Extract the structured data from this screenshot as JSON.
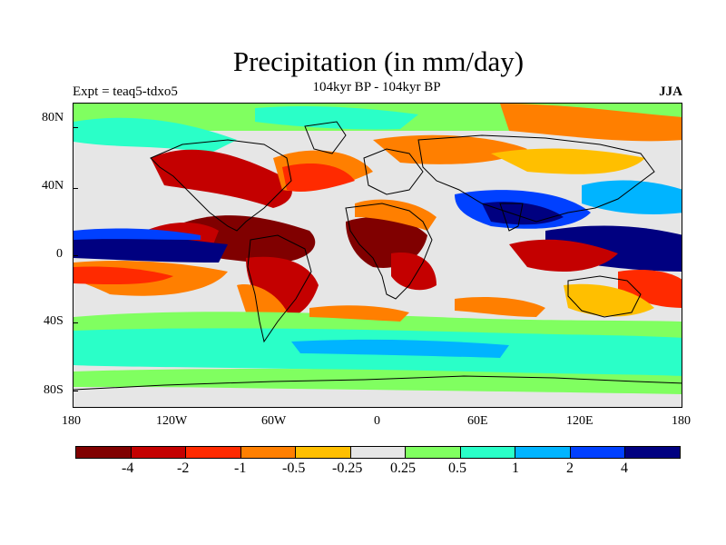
{
  "title": "Precipitation (in mm/day)",
  "subtitle": "104kyr BP - 104kyr BP",
  "experiment": "Expt = teaq5-tdxo5",
  "season": "JJA",
  "map": {
    "lat_labels": [
      "80N",
      "40N",
      "0",
      "40S",
      "80S"
    ],
    "lon_labels": [
      "180",
      "120W",
      "60W",
      "0",
      "60E",
      "120E",
      "180"
    ]
  },
  "colorbar": {
    "colors": [
      "#800000",
      "#c40000",
      "#ff2a00",
      "#ff7f00",
      "#ffbf00",
      "#e6e6e6",
      "#80ff60",
      "#2affc8",
      "#00b4ff",
      "#0040ff",
      "#000080"
    ],
    "labels": [
      "-4",
      "-2",
      "-1",
      "-0.5",
      "-0.25",
      "0.25",
      "0.5",
      "1",
      "2",
      "4"
    ]
  },
  "legend_colors": {
    "land_outline": "#000000",
    "background": "#e6e6e6"
  }
}
